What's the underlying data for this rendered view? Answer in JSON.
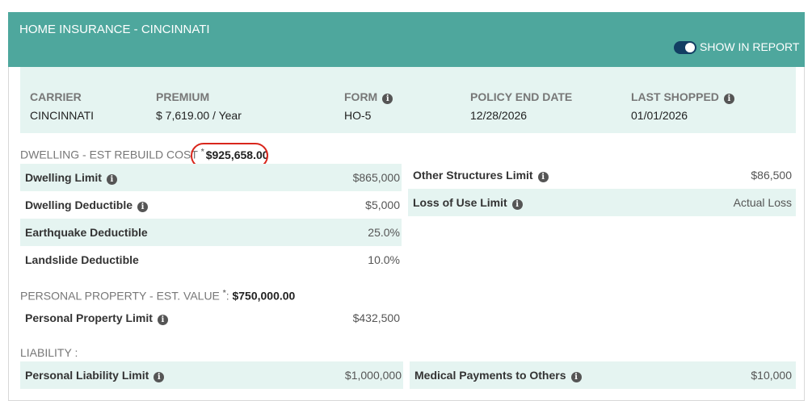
{
  "header": {
    "title": "HOME INSURANCE - CINCINNATI",
    "toggle_label": "SHOW IN REPORT"
  },
  "summary": [
    {
      "label": "CARRIER",
      "value": "CINCINNATI"
    },
    {
      "label": "PREMIUM",
      "value": "$ 7,619.00 / Year"
    },
    {
      "label": "FORM",
      "value": "HO-5"
    },
    {
      "label": "POLICY END DATE",
      "value": "12/28/2026"
    },
    {
      "label": "LAST SHOPPED",
      "value": "01/01/2026"
    }
  ],
  "dwelling": {
    "label": "DWELLING - EST REBUILD COST",
    "asterisk": "*",
    "value": "$925,658.00",
    "left_rows": [
      {
        "label": "Dwelling Limit",
        "value": "$865,000"
      },
      {
        "label": "Dwelling Deductible",
        "value": "$5,000"
      },
      {
        "label": "Earthquake Deductible",
        "value": "25.0%"
      },
      {
        "label": "Landslide Deductible",
        "value": "10.0%"
      }
    ],
    "right_rows": [
      {
        "label": "Other Structures Limit",
        "value": "$86,500"
      },
      {
        "label": "Loss of Use Limit",
        "value": "Actual Loss"
      }
    ]
  },
  "personal_property": {
    "label": "PERSONAL PROPERTY - EST. VALUE",
    "asterisk": "*",
    "colon": ":",
    "value": "$750,000.00",
    "rows": [
      {
        "label": "Personal Property Limit",
        "value": "$432,500"
      }
    ]
  },
  "liability": {
    "label": "LIABILITY :",
    "left_rows": [
      {
        "label": "Personal Liability Limit",
        "value": "$1,000,000"
      }
    ],
    "right_rows": [
      {
        "label": "Medical Payments to Others",
        "value": "$10,000"
      }
    ]
  }
}
